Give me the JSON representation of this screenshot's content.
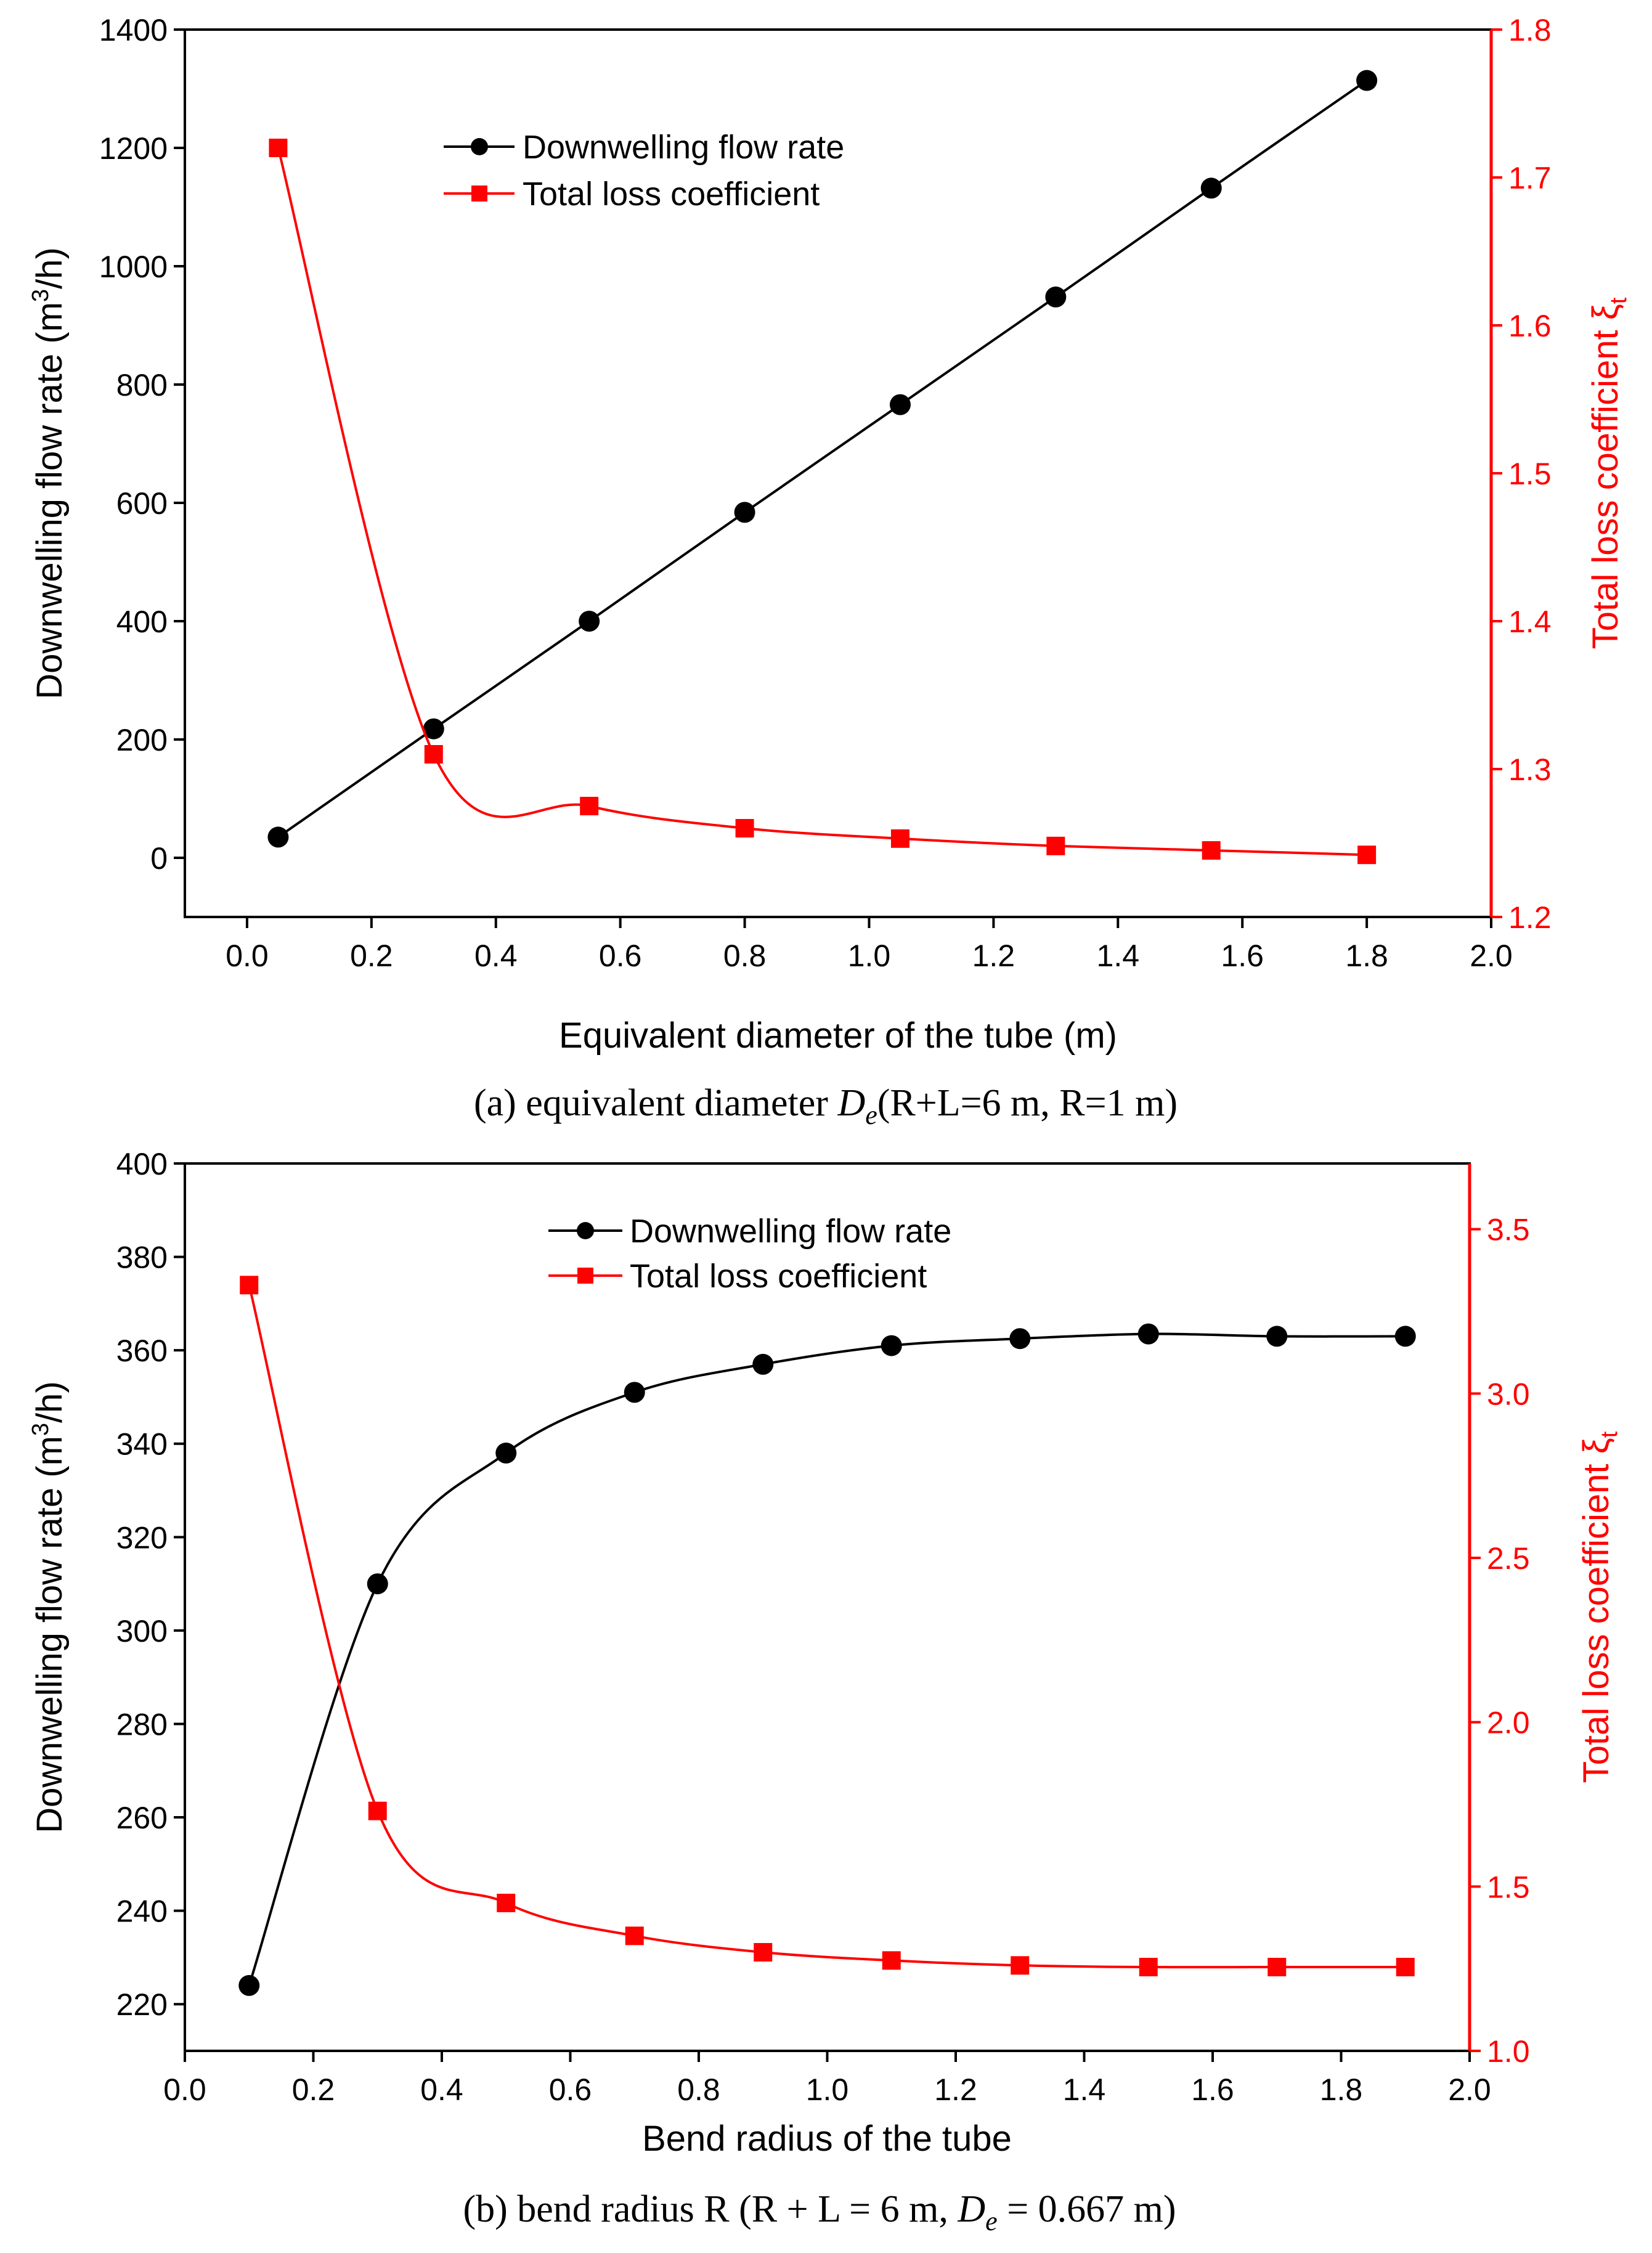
{
  "chart_data": [
    {
      "type": "line",
      "xlabel": "Equivalent diameter of the tube (m)",
      "ylabel": "Downwelling flow rate (m³/h)",
      "ylabel_parts": [
        "Downwelling flow rate (m",
        "3",
        "/h)"
      ],
      "y2label": "Total loss coefficient ξt",
      "y2label_parts": [
        "Total loss coefficient ",
        "ξ",
        "t"
      ],
      "xlim": [
        -0.1,
        2.0
      ],
      "ylim": [
        -100,
        1400
      ],
      "y2lim": [
        1.2,
        1.8
      ],
      "xticks": [
        "0.0",
        "0.2",
        "0.4",
        "0.6",
        "0.8",
        "1.0",
        "1.2",
        "1.4",
        "1.6",
        "1.8",
        "2.0"
      ],
      "yticks": [
        "0",
        "200",
        "400",
        "600",
        "800",
        "1000",
        "1200",
        "1400"
      ],
      "y2ticks": [
        "1.2",
        "1.3",
        "1.4",
        "1.5",
        "1.6",
        "1.7",
        "1.8"
      ],
      "legend": [
        "Downwelling flow rate",
        "Total loss coefficient"
      ],
      "legend_position": "top-center",
      "series": [
        {
          "name": "Downwelling flow rate",
          "axis": "left",
          "color": "#000000",
          "marker": "circle",
          "x": [
            0.05,
            0.3,
            0.55,
            0.8,
            1.05,
            1.3,
            1.55,
            1.8
          ],
          "y": [
            35,
            218,
            400,
            584,
            766,
            948,
            1132,
            1314
          ]
        },
        {
          "name": "Total loss coefficient",
          "axis": "right",
          "color": "#ff0000",
          "marker": "square",
          "x": [
            0.05,
            0.3,
            0.55,
            0.8,
            1.05,
            1.3,
            1.55,
            1.8
          ],
          "y": [
            1.72,
            1.31,
            1.275,
            1.26,
            1.253,
            1.248,
            1.245,
            1.242
          ]
        }
      ],
      "caption_parts": [
        "(a) equivalent diameter ",
        "D",
        "e",
        "(R+L=6 m, R=1 m)"
      ]
    },
    {
      "type": "line",
      "xlabel": "Bend radius of the tube",
      "ylabel": "Downwelling flow rate (m³/h)",
      "ylabel_parts": [
        "Downwelling flow rate (m",
        "3",
        "/h)"
      ],
      "y2label": "Total loss coefficient ξt",
      "y2label_parts": [
        "Total loss coefficient ",
        "ξ",
        "t"
      ],
      "xlim": [
        0.0,
        2.0
      ],
      "ylim": [
        210,
        400
      ],
      "y2lim": [
        1.0,
        3.7
      ],
      "xticks": [
        "0.0",
        "0.2",
        "0.4",
        "0.6",
        "0.8",
        "1.0",
        "1.2",
        "1.4",
        "1.6",
        "1.8",
        "2.0"
      ],
      "yticks": [
        "220",
        "240",
        "260",
        "280",
        "300",
        "320",
        "340",
        "360",
        "380",
        "400"
      ],
      "y2ticks": [
        "1.0",
        "1.5",
        "2.0",
        "2.5",
        "3.0",
        "3.5"
      ],
      "legend": [
        "Downwelling flow rate",
        "Total loss coefficient"
      ],
      "legend_position": "top-center",
      "series": [
        {
          "name": "Downwelling flow rate",
          "axis": "left",
          "color": "#000000",
          "marker": "circle",
          "x": [
            0.1,
            0.3,
            0.5,
            0.7,
            0.9,
            1.1,
            1.3,
            1.5,
            1.7,
            1.9
          ],
          "y": [
            224,
            310,
            338,
            351,
            357,
            361,
            362.5,
            363.5,
            363,
            363
          ]
        },
        {
          "name": "Total loss coefficient",
          "axis": "right",
          "color": "#ff0000",
          "marker": "square",
          "x": [
            0.1,
            0.3,
            0.5,
            0.7,
            0.9,
            1.1,
            1.3,
            1.5,
            1.7,
            1.9
          ],
          "y": [
            3.33,
            1.73,
            1.45,
            1.35,
            1.3,
            1.275,
            1.26,
            1.255,
            1.255,
            1.255
          ]
        }
      ],
      "caption_parts": [
        "(b) bend radius R (R + L = 6 m,  ",
        "D",
        "e",
        " = 0.667  m)"
      ]
    }
  ]
}
